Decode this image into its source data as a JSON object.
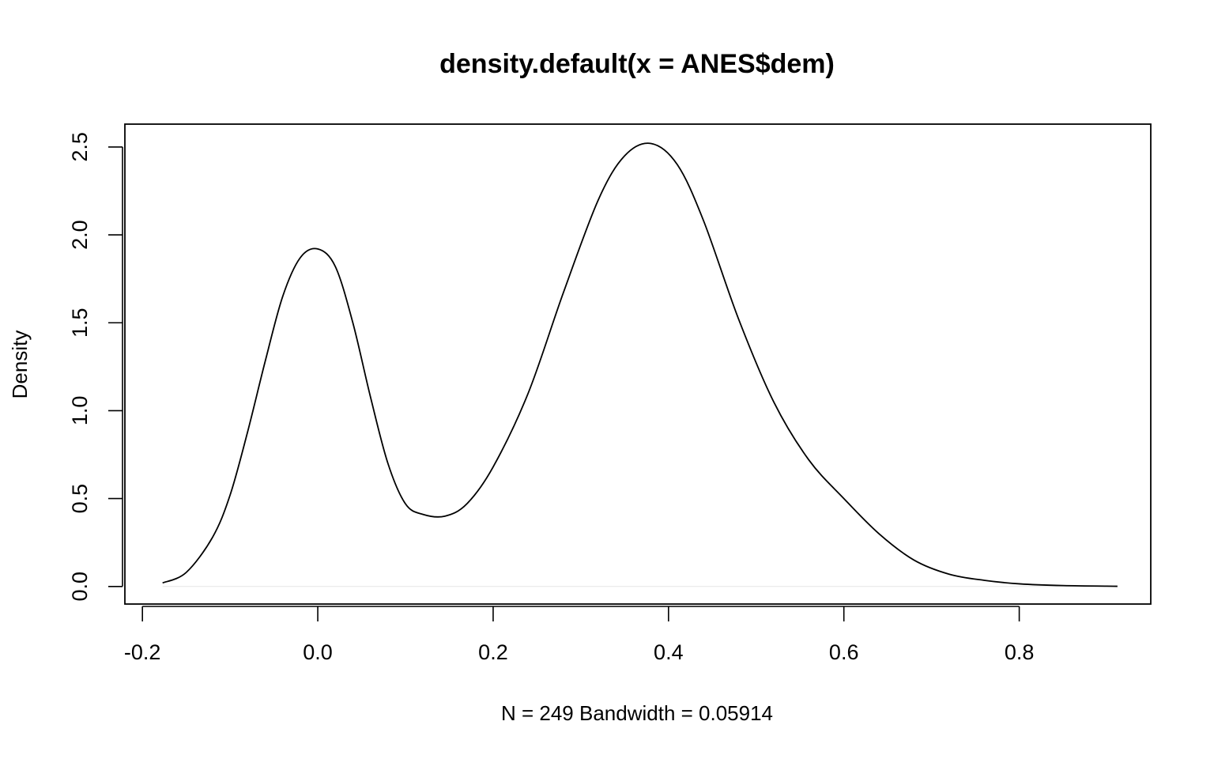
{
  "chart_data": {
    "type": "line",
    "title": "density.default(x = ANES$dem)",
    "xlabel": "N = 249   Bandwidth = 0.05914",
    "ylabel": "Density",
    "xlim": [
      -0.22,
      0.95
    ],
    "ylim": [
      -0.1,
      2.63
    ],
    "x_ticks": [
      -0.2,
      0.0,
      0.2,
      0.4,
      0.6,
      0.8
    ],
    "x_tick_labels": [
      "-0.2",
      "0.0",
      "0.2",
      "0.4",
      "0.6",
      "0.8"
    ],
    "y_ticks": [
      0.0,
      0.5,
      1.0,
      1.5,
      2.0,
      2.5
    ],
    "y_tick_labels": [
      "0.0",
      "0.5",
      "1.0",
      "1.5",
      "2.0",
      "2.5"
    ],
    "grid": false,
    "baseline_y": 0,
    "series": [
      {
        "color": "#000000",
        "x": [
          -0.177,
          -0.15,
          -0.12,
          -0.1,
          -0.08,
          -0.06,
          -0.04,
          -0.02,
          0.0,
          0.02,
          0.04,
          0.06,
          0.08,
          0.1,
          0.12,
          0.145,
          0.17,
          0.2,
          0.24,
          0.28,
          0.32,
          0.35,
          0.38,
          0.41,
          0.44,
          0.48,
          0.52,
          0.56,
          0.6,
          0.64,
          0.68,
          0.72,
          0.76,
          0.8,
          0.85,
          0.912
        ],
        "y": [
          0.02,
          0.08,
          0.28,
          0.52,
          0.88,
          1.28,
          1.65,
          1.87,
          1.92,
          1.82,
          1.5,
          1.08,
          0.7,
          0.47,
          0.41,
          0.4,
          0.47,
          0.68,
          1.1,
          1.67,
          2.2,
          2.45,
          2.52,
          2.4,
          2.08,
          1.52,
          1.05,
          0.72,
          0.5,
          0.3,
          0.15,
          0.07,
          0.035,
          0.015,
          0.005,
          0.001
        ]
      }
    ]
  }
}
